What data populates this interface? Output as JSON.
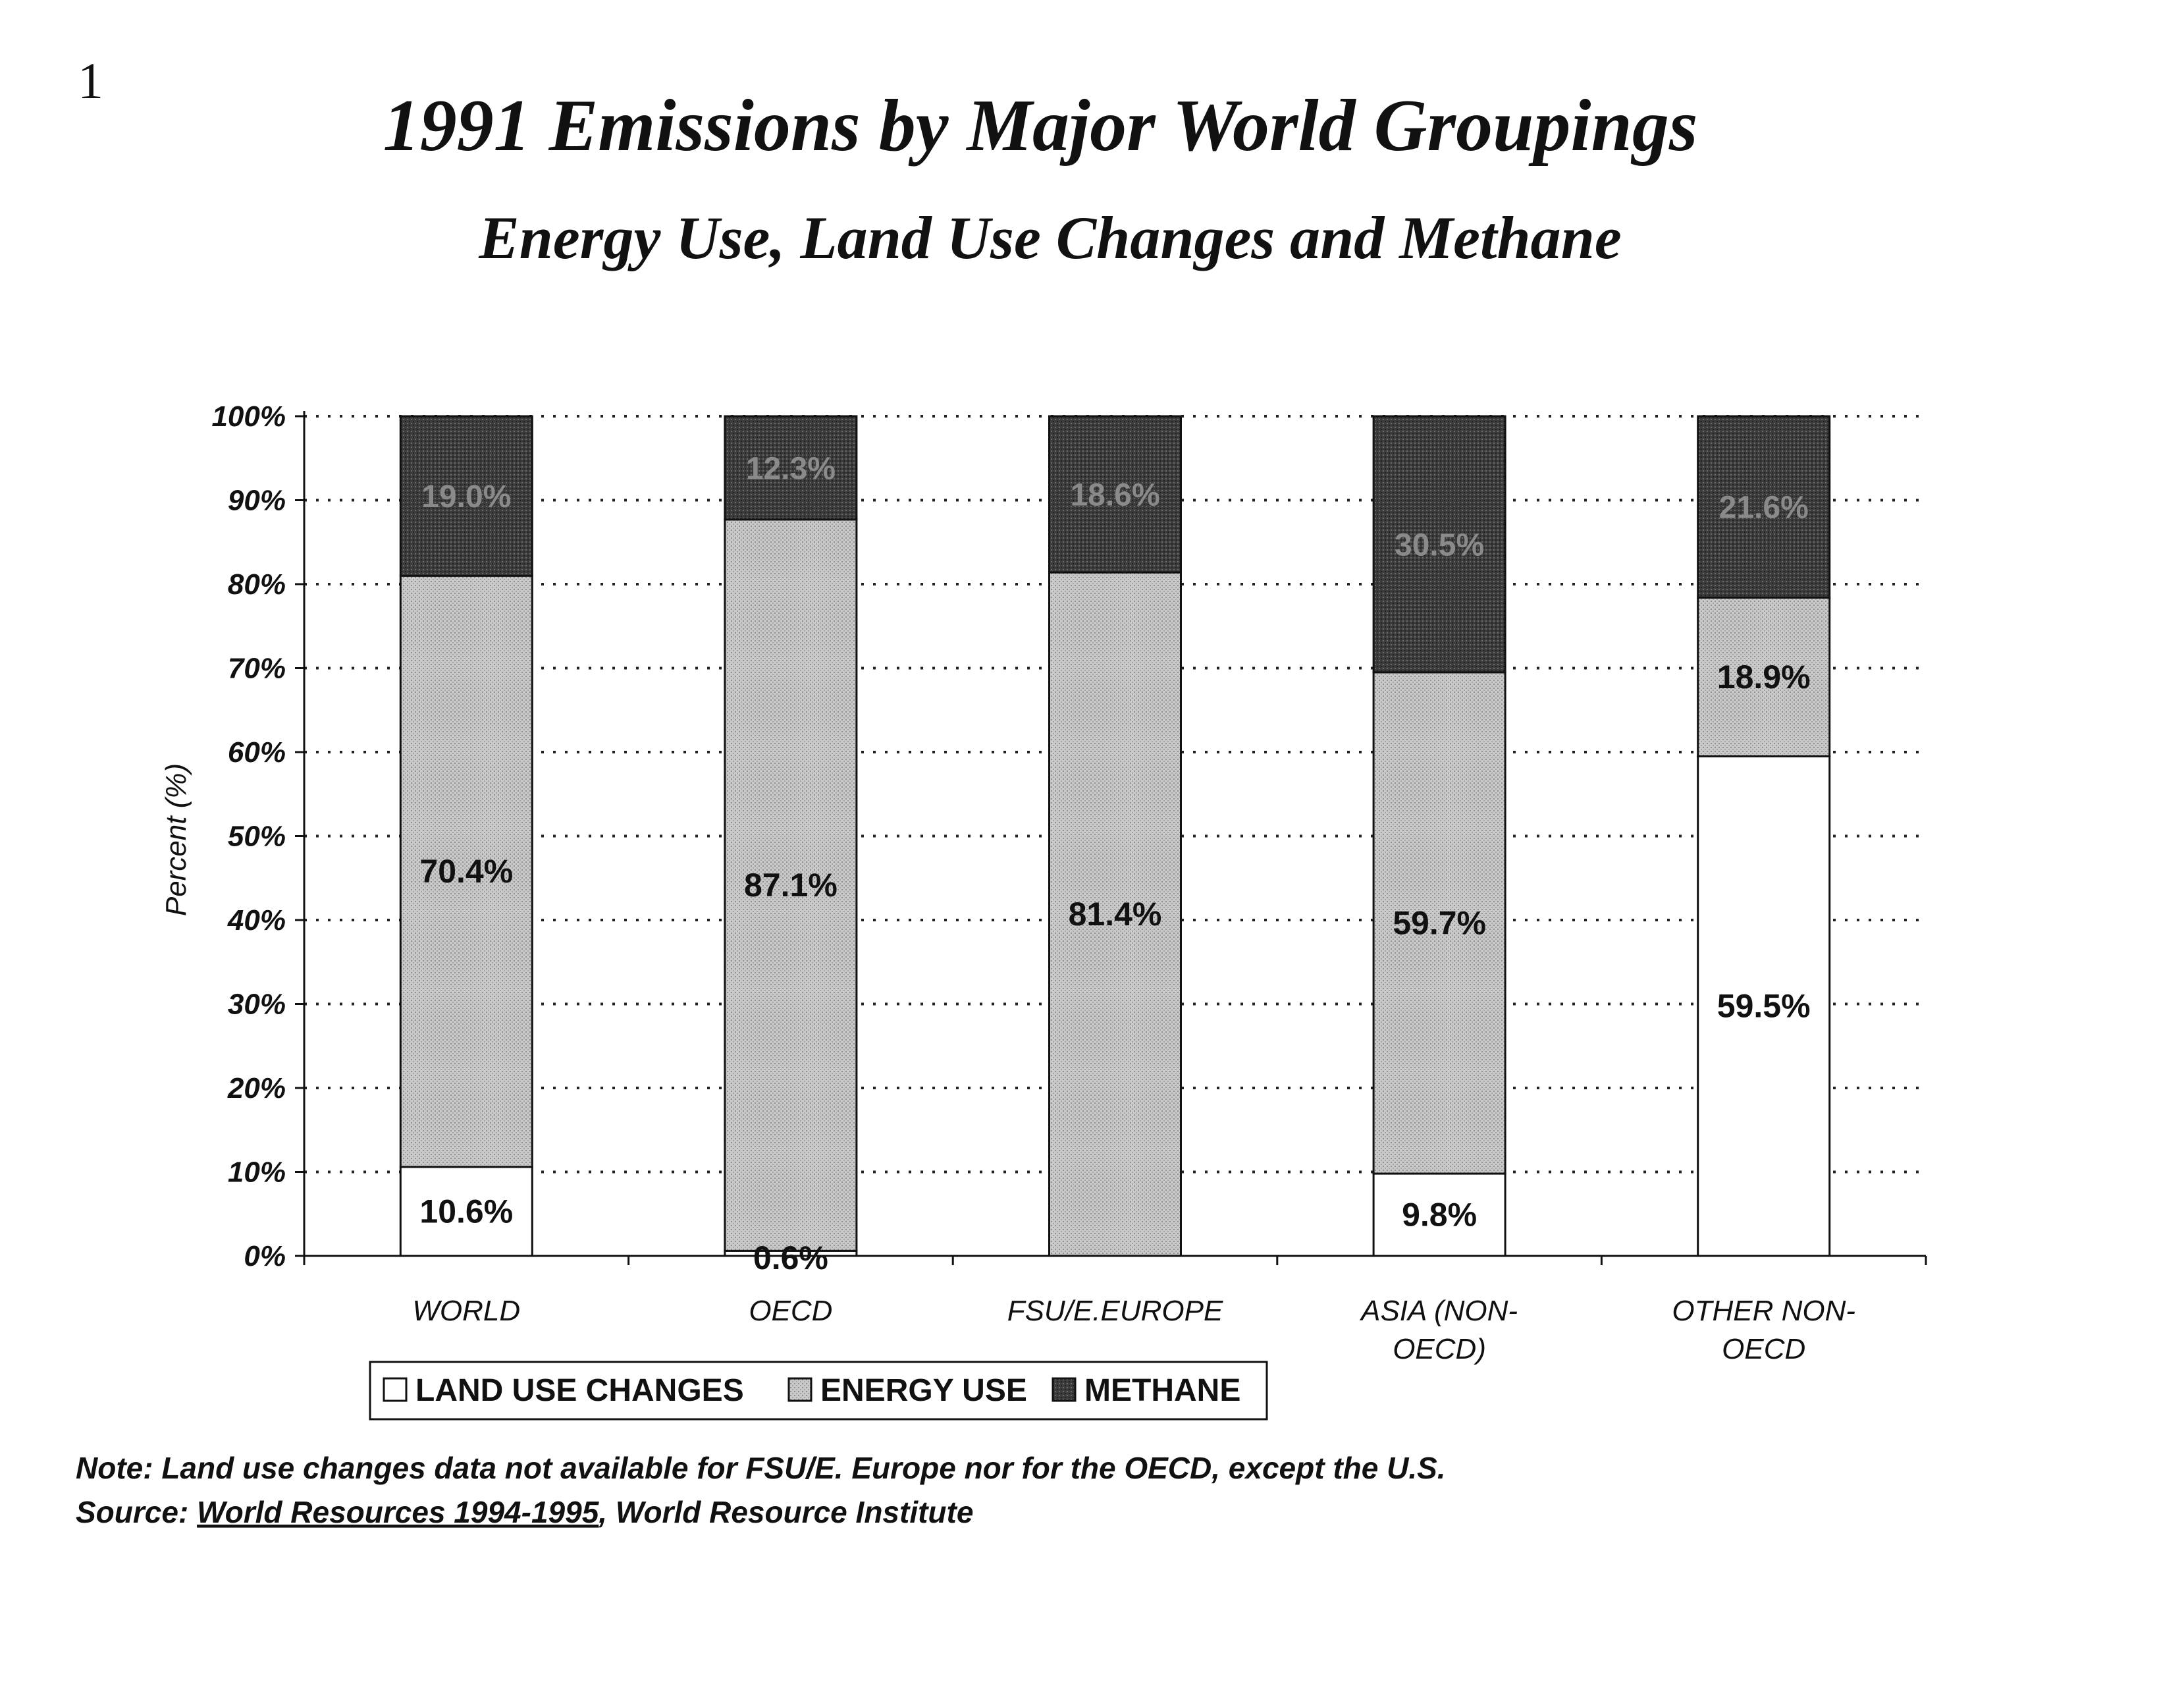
{
  "page_number": "1",
  "chart_data": {
    "type": "bar",
    "stacked": true,
    "title": "1991 Emissions by Major World Groupings",
    "subtitle": "Energy Use, Land Use Changes and Methane",
    "ylabel": "Percent (%)",
    "xlabel": "",
    "ylim": [
      0,
      100
    ],
    "yticks": [
      "0%",
      "10%",
      "20%",
      "30%",
      "40%",
      "50%",
      "60%",
      "70%",
      "80%",
      "90%",
      "100%"
    ],
    "categories": [
      "WORLD",
      "OECD",
      "FSU/E.EUROPE",
      "ASIA (NON-OECD)",
      "OTHER NON-OECD"
    ],
    "category_lines": [
      [
        "WORLD"
      ],
      [
        "OECD"
      ],
      [
        "FSU/E.EUROPE"
      ],
      [
        "ASIA (NON-",
        "OECD)"
      ],
      [
        "OTHER NON-",
        "OECD"
      ]
    ],
    "grid": "horizontal dotted",
    "legend_position": "bottom-left",
    "series": [
      {
        "name": "LAND USE CHANGES",
        "values": [
          10.6,
          0.6,
          0,
          9.8,
          59.5
        ],
        "labels": [
          "10.6%",
          "0.6%",
          "",
          "9.8%",
          "59.5%"
        ],
        "color": "#ffffff"
      },
      {
        "name": "ENERGY USE",
        "values": [
          70.4,
          87.1,
          81.4,
          59.7,
          18.9
        ],
        "labels": [
          "70.4%",
          "87.1%",
          "81.4%",
          "59.7%",
          "18.9%"
        ],
        "color": "#c4c4c4"
      },
      {
        "name": "METHANE",
        "values": [
          19.0,
          12.3,
          18.6,
          30.5,
          21.6
        ],
        "labels": [
          "19.0%",
          "12.3%",
          "18.6%",
          "30.5%",
          "21.6%"
        ],
        "color": "#3a3a3a"
      }
    ]
  },
  "note_line": "Note:  Land use changes data not available for FSU/E. Europe nor for the OECD, except the U.S.",
  "source_prefix": "Source: ",
  "source_title": "World Resources 1994-1995",
  "source_suffix": ", World Resource Institute"
}
